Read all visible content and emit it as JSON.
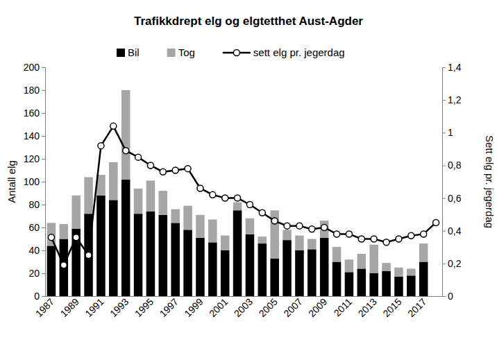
{
  "chart_data": {
    "type": "bar",
    "title": "Trafikkdrept elg og elgtetthet Aust-Agder",
    "y_label": "Antall elg",
    "y2_label": "Sett elg pr. jegerdag",
    "categories": [
      "1987",
      null,
      "1989",
      null,
      "1991",
      null,
      "1993",
      null,
      "1995",
      null,
      "1997",
      null,
      "1999",
      null,
      "2001",
      null,
      "2003",
      null,
      "2005",
      null,
      "2007",
      null,
      "2009",
      null,
      "2011",
      null,
      "2013",
      null,
      "2015",
      null,
      "2017",
      null
    ],
    "stacked": true,
    "legend": "top",
    "grid": false,
    "ylim": [
      0,
      200
    ],
    "yticks": [
      0,
      20,
      40,
      60,
      80,
      100,
      120,
      140,
      160,
      180,
      200
    ],
    "y2lim": [
      0,
      1.4
    ],
    "y2ticks": [
      0,
      {
        "value": 0.2,
        "label": "0,2"
      },
      {
        "value": 0.4,
        "label": "0,4"
      },
      {
        "value": 0.6,
        "label": "0,6"
      },
      {
        "value": 0.8,
        "label": "0,8"
      },
      1,
      {
        "value": 1.2,
        "label": "1,2"
      },
      {
        "value": 1.4,
        "label": "1,4"
      }
    ],
    "series": [
      {
        "name": "Bil",
        "type": "bar",
        "color": "#000000",
        "values": [
          44,
          50,
          59,
          72,
          88,
          84,
          102,
          72,
          74,
          71,
          64,
          58,
          51,
          47,
          40,
          75,
          54,
          46,
          33,
          49,
          40,
          41,
          51,
          30,
          21,
          24,
          20,
          22,
          17,
          18,
          30,
          null
        ]
      },
      {
        "name": "Tog",
        "type": "bar",
        "color": "#a6a6a6",
        "values": [
          20,
          13,
          29,
          32,
          18,
          33,
          78,
          22,
          27,
          21,
          12,
          21,
          20,
          20,
          13,
          7,
          14,
          6,
          42,
          9,
          13,
          9,
          15,
          13,
          11,
          13,
          25,
          7,
          8,
          6,
          16,
          null
        ]
      },
      {
        "name": "sett elg pr. jegerdag",
        "type": "line",
        "axis": "y2",
        "color": "#000000",
        "marker": "circle",
        "values": [
          0.36,
          0.19,
          0.36,
          0.25,
          0.92,
          1.04,
          0.89,
          0.85,
          0.8,
          0.76,
          0.77,
          0.78,
          0.66,
          0.62,
          0.6,
          0.6,
          0.56,
          0.51,
          0.46,
          0.43,
          0.43,
          0.41,
          0.42,
          0.38,
          0.38,
          0.35,
          0.35,
          0.33,
          0.35,
          0.37,
          0.38,
          0.45
        ]
      }
    ]
  }
}
